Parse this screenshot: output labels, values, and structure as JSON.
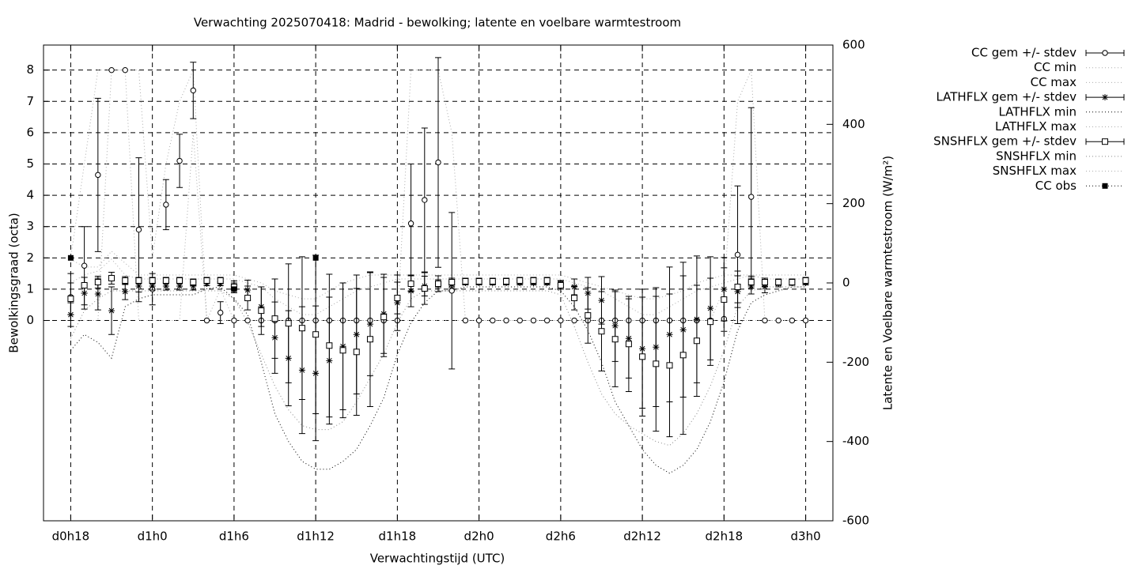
{
  "chart_data": {
    "type": "errorbar-line",
    "title": "Verwachting 2025070418: Madrid - bewolking; latente en voelbare warmtestroom",
    "x_label": "Verwachtingstijd (UTC)",
    "y_label": "Bewolkingsgraad (octa)",
    "y2_label": "Latente en Voelbare warmtestroom (W/m²)",
    "xlim": [
      16,
      74
    ],
    "ylim": [
      -6.4,
      8.8
    ],
    "y2lim": [
      -600,
      600
    ],
    "grid": true,
    "legend": "outside-top-right",
    "xticks": [
      {
        "value": 18,
        "label": "d0h18"
      },
      {
        "value": 24,
        "label": "d1h0"
      },
      {
        "value": 30,
        "label": "d1h6"
      },
      {
        "value": 36,
        "label": "d1h12"
      },
      {
        "value": 42,
        "label": "d1h18"
      },
      {
        "value": 48,
        "label": "d2h0"
      },
      {
        "value": 54,
        "label": "d2h6"
      },
      {
        "value": 60,
        "label": "d2h12"
      },
      {
        "value": 66,
        "label": "d2h18"
      },
      {
        "value": 72,
        "label": "d3h0"
      }
    ],
    "yticks": [
      0,
      1,
      2,
      3,
      4,
      5,
      6,
      7,
      8
    ],
    "y2ticks": [
      -600,
      -400,
      -200,
      0,
      200,
      400,
      600
    ],
    "x": [
      18,
      19,
      20,
      21,
      22,
      23,
      24,
      25,
      26,
      27,
      28,
      29,
      30,
      31,
      32,
      33,
      34,
      35,
      36,
      37,
      38,
      39,
      40,
      41,
      42,
      43,
      44,
      45,
      46,
      47,
      48,
      49,
      50,
      51,
      52,
      53,
      54,
      55,
      56,
      57,
      58,
      59,
      60,
      61,
      62,
      63,
      64,
      65,
      66,
      67,
      68,
      69,
      70,
      71,
      72
    ],
    "series": [
      {
        "name": "CC gem +/- stdev",
        "style": "errorbars",
        "marker": "circle",
        "color": "#000000",
        "axis": "y",
        "values": [
          0.75,
          1.75,
          4.65,
          8,
          8,
          2.9,
          1.0,
          3.7,
          5.1,
          7.35,
          0,
          0.25,
          0,
          0,
          0,
          0,
          0,
          0,
          0,
          0,
          0,
          0,
          0,
          0,
          0,
          3.1,
          3.85,
          5.05,
          0.95,
          0,
          0,
          0,
          0,
          0,
          0,
          0,
          0,
          0,
          0,
          0,
          0,
          0,
          0,
          0,
          0,
          0,
          0,
          0,
          0.05,
          2.1,
          3.95,
          0,
          0,
          0,
          0
        ],
        "errors": [
          0.75,
          1.25,
          2.45,
          0,
          0,
          2.3,
          0.5,
          0.8,
          0.85,
          0.9,
          0,
          0.35,
          0,
          0,
          0,
          0,
          0,
          0,
          0,
          0,
          0,
          0,
          0,
          0,
          0,
          1.9,
          2.3,
          3.35,
          2.5,
          0,
          0,
          0,
          0,
          0,
          0,
          0,
          0,
          0,
          0,
          0,
          0,
          0,
          0,
          0,
          0,
          0,
          0,
          0,
          0,
          2.2,
          2.85,
          0,
          0,
          0,
          0
        ]
      },
      {
        "name": "CC min",
        "style": "line",
        "color": "#aaaaaa",
        "axis": "y",
        "values": [
          0,
          0,
          0,
          8,
          8,
          0,
          0,
          0,
          0,
          6,
          0,
          0,
          0,
          0,
          0,
          0,
          0,
          0,
          0,
          0,
          0,
          0,
          0,
          0,
          0,
          0,
          0,
          0,
          0,
          0,
          0,
          0,
          0,
          0,
          0,
          0,
          0,
          0,
          0,
          0,
          0,
          0,
          0,
          0,
          0,
          0,
          0,
          0,
          0,
          0,
          0,
          0,
          0,
          0,
          0
        ]
      },
      {
        "name": "CC max",
        "style": "line",
        "color": "#aaaaaa",
        "axis": "y",
        "values": [
          2,
          5,
          8,
          8,
          8,
          8,
          2,
          5,
          7,
          8,
          0,
          1,
          0,
          0,
          0,
          0,
          0,
          0,
          0,
          0,
          0,
          0,
          0,
          0,
          0,
          8,
          8,
          8,
          6,
          0,
          0,
          0,
          0,
          0,
          0,
          0,
          0,
          0,
          0,
          0,
          0,
          0,
          0,
          0,
          0,
          0,
          0,
          0,
          1,
          7,
          8,
          0,
          0,
          0,
          0
        ]
      },
      {
        "name": "LATHFLX gem +/- stdev",
        "style": "errorbars",
        "marker": "asterisk",
        "color": "#000000",
        "axis": "y2",
        "values": [
          -80,
          -26,
          -28,
          -70,
          -22,
          -8,
          -8,
          -8,
          -8,
          -8,
          -2,
          -2,
          -10,
          -18,
          -60,
          -138,
          -190,
          -220,
          -228,
          -196,
          -160,
          -130,
          -104,
          -78,
          -50,
          -20,
          -8,
          -2,
          -4,
          0,
          0,
          0,
          0,
          0,
          0,
          0,
          -2,
          -10,
          -26,
          -44,
          -108,
          -140,
          -166,
          -162,
          -130,
          -118,
          -92,
          -64,
          -16,
          -22,
          -8,
          -10,
          -2,
          0,
          0
        ],
        "errors": [
          30,
          40,
          40,
          60,
          20,
          15,
          10,
          10,
          10,
          10,
          5,
          5,
          10,
          25,
          50,
          90,
          120,
          160,
          170,
          160,
          160,
          150,
          130,
          100,
          70,
          40,
          25,
          10,
          8,
          5,
          5,
          5,
          5,
          5,
          5,
          5,
          8,
          20,
          40,
          60,
          90,
          100,
          150,
          150,
          170,
          170,
          160,
          130,
          80,
          40,
          20,
          15,
          8,
          5,
          5
        ]
      },
      {
        "name": "LATHFLX min",
        "style": "line",
        "color": "#000000",
        "axis": "y2",
        "values": [
          -170,
          -130,
          -150,
          -190,
          -60,
          -40,
          -30,
          -30,
          -30,
          -30,
          -15,
          -10,
          -40,
          -80,
          -200,
          -330,
          -400,
          -450,
          -470,
          -470,
          -450,
          -420,
          -360,
          -290,
          -180,
          -100,
          -50,
          -20,
          -20,
          -10,
          -10,
          -10,
          -10,
          -10,
          -10,
          -10,
          -20,
          -60,
          -120,
          -200,
          -300,
          -360,
          -420,
          -460,
          -480,
          -460,
          -420,
          -350,
          -250,
          -120,
          -50,
          -30,
          -20,
          -10,
          -10
        ]
      },
      {
        "name": "LATHFLX max",
        "style": "line",
        "color": "#aaaaaa",
        "axis": "y2",
        "values": [
          0,
          20,
          30,
          60,
          20,
          10,
          10,
          10,
          10,
          10,
          10,
          10,
          10,
          0,
          -10,
          -40,
          -60,
          -80,
          -80,
          -60,
          -40,
          -20,
          -10,
          0,
          10,
          10,
          10,
          10,
          10,
          10,
          10,
          10,
          10,
          10,
          10,
          10,
          10,
          0,
          -10,
          -20,
          -40,
          -60,
          -80,
          -80,
          -60,
          -40,
          -20,
          -10,
          0,
          10,
          20,
          10,
          10,
          10,
          10
        ]
      },
      {
        "name": "SNSHFLX gem +/- stdev",
        "style": "errorbars",
        "marker": "square",
        "color": "#000000",
        "axis": "y2",
        "values": [
          -40,
          -6,
          2,
          12,
          6,
          6,
          6,
          6,
          6,
          2,
          6,
          6,
          -10,
          -38,
          -70,
          -90,
          -102,
          -114,
          -130,
          -158,
          -170,
          -174,
          -142,
          -86,
          -38,
          -2,
          -14,
          -2,
          2,
          4,
          4,
          4,
          4,
          6,
          6,
          6,
          -6,
          -38,
          -82,
          -122,
          -142,
          -154,
          -186,
          -204,
          -208,
          -182,
          -146,
          -98,
          -42,
          -10,
          2,
          2,
          2,
          2,
          6
        ],
        "errors": [
          40,
          20,
          15,
          15,
          10,
          8,
          8,
          8,
          8,
          8,
          8,
          8,
          15,
          30,
          60,
          100,
          150,
          180,
          200,
          180,
          170,
          160,
          170,
          100,
          40,
          20,
          40,
          20,
          10,
          8,
          8,
          8,
          8,
          8,
          8,
          8,
          10,
          30,
          70,
          100,
          120,
          120,
          150,
          170,
          180,
          200,
          140,
          110,
          80,
          40,
          15,
          10,
          8,
          8,
          8
        ]
      },
      {
        "name": "SNSHFLX min",
        "style": "line",
        "color": "#888888",
        "axis": "y2",
        "values": [
          -140,
          -70,
          -40,
          -20,
          -20,
          -20,
          -20,
          -20,
          -20,
          -20,
          -20,
          -20,
          -40,
          -100,
          -180,
          -260,
          -320,
          -360,
          -370,
          -370,
          -350,
          -300,
          -240,
          -180,
          -100,
          -40,
          -20,
          -20,
          -20,
          -20,
          -20,
          -20,
          -20,
          -20,
          -20,
          -20,
          -30,
          -110,
          -200,
          -280,
          -330,
          -360,
          -380,
          -400,
          -410,
          -380,
          -330,
          -260,
          -170,
          -60,
          -20,
          -10,
          -10,
          -10,
          -10
        ]
      },
      {
        "name": "SNSHFLX max",
        "style": "line",
        "color": "#aaaaaa",
        "axis": "y2",
        "values": [
          60,
          40,
          40,
          80,
          50,
          20,
          20,
          20,
          20,
          20,
          20,
          20,
          20,
          10,
          0,
          -20,
          -30,
          -40,
          -40,
          -20,
          0,
          10,
          20,
          20,
          20,
          20,
          20,
          20,
          20,
          20,
          20,
          20,
          20,
          20,
          20,
          20,
          20,
          10,
          0,
          -10,
          -20,
          -30,
          -40,
          -40,
          -30,
          -20,
          0,
          10,
          20,
          20,
          20,
          20,
          20,
          20,
          20
        ]
      },
      {
        "name": "CC obs",
        "style": "points",
        "marker": "filled-square",
        "color": "#000000",
        "axis": "y",
        "x": [
          18,
          30,
          36
        ],
        "values": [
          2,
          1,
          2
        ]
      }
    ]
  }
}
